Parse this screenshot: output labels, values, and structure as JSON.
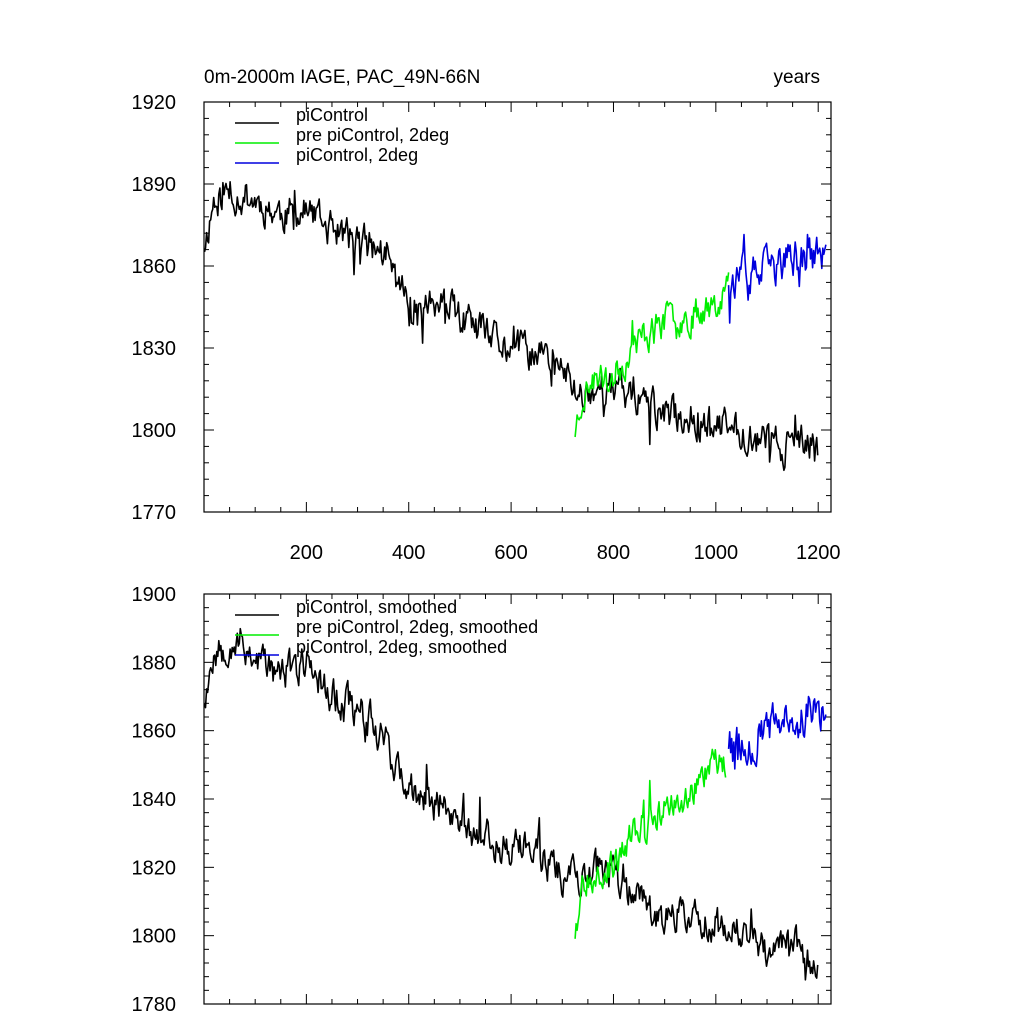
{
  "colors": {
    "piControl": "#000000",
    "pre_piControl_2deg": "#00ee00",
    "piControl_2deg": "#0000dd"
  },
  "chart_data": [
    {
      "type": "line",
      "title": "0m-2000m IAGE, PAC_49N-66N",
      "units": "years",
      "xlim": [
        0,
        1225
      ],
      "ylim": [
        1770,
        1920
      ],
      "xticks": [
        200,
        400,
        600,
        800,
        1000,
        1200
      ],
      "xtick_labels": [
        "200",
        "400",
        "600",
        "800",
        "1000",
        "1200"
      ],
      "yticks": [
        1770,
        1800,
        1830,
        1860,
        1890,
        1920
      ],
      "ytick_labels": [
        "1770",
        "1800",
        "1830",
        "1860",
        "1890",
        "1920"
      ],
      "legend_position": "top-left",
      "series": [
        {
          "name": "piControl",
          "color": "#000000",
          "x_start": 1,
          "x_end": 1200,
          "noise": 5.5,
          "seed": 11,
          "trend_x": [
            1,
            20,
            60,
            100,
            150,
            200,
            250,
            300,
            350,
            400,
            450,
            500,
            550,
            600,
            650,
            700,
            730,
            760,
            800,
            850,
            900,
            950,
            1000,
            1050,
            1100,
            1150,
            1200
          ],
          "trend_y": [
            1868,
            1885,
            1887,
            1884,
            1879,
            1880,
            1873,
            1869,
            1865,
            1846,
            1846,
            1841,
            1833,
            1830,
            1828,
            1822,
            1813,
            1815,
            1815,
            1812,
            1805,
            1805,
            1801,
            1800,
            1796,
            1794,
            1794
          ]
        },
        {
          "name": "pre piControl, 2deg",
          "color": "#00ee00",
          "x_start": 725,
          "x_end": 1025,
          "noise": 5,
          "seed": 23,
          "trend_x": [
            725,
            740,
            760,
            800,
            850,
            900,
            950,
            1000,
            1025
          ],
          "trend_y": [
            1800,
            1814,
            1818,
            1820,
            1833,
            1840,
            1842,
            1848,
            1853
          ]
        },
        {
          "name": "piControl, 2deg",
          "color": "#0000dd",
          "x_start": 1025,
          "x_end": 1215,
          "noise": 6,
          "seed": 37,
          "trend_x": [
            1025,
            1050,
            1100,
            1150,
            1200,
            1215
          ],
          "trend_y": [
            1856,
            1855,
            1858,
            1863,
            1864,
            1864
          ]
        }
      ]
    },
    {
      "type": "line",
      "xlim": [
        0,
        1225
      ],
      "ylim": [
        1780,
        1900
      ],
      "yticks": [
        1780,
        1800,
        1820,
        1840,
        1860,
        1880,
        1900
      ],
      "ytick_labels": [
        "1780",
        "1800",
        "1820",
        "1840",
        "1860",
        "1880",
        "1900"
      ],
      "legend_position": "top-left",
      "series": [
        {
          "name": "piControl, smoothed",
          "color": "#000000",
          "x_start": 1,
          "x_end": 1200,
          "noise": 4.5,
          "seed": 53,
          "trend_x": [
            1,
            20,
            60,
            100,
            150,
            200,
            250,
            300,
            350,
            400,
            450,
            500,
            550,
            600,
            650,
            700,
            730,
            760,
            800,
            850,
            900,
            950,
            1000,
            1050,
            1100,
            1150,
            1200
          ],
          "trend_y": [
            1870,
            1884,
            1887,
            1882,
            1876,
            1880,
            1871,
            1866,
            1860,
            1840,
            1839,
            1834,
            1828,
            1826,
            1825,
            1818,
            1818,
            1818,
            1818,
            1810,
            1806,
            1806,
            1803,
            1800,
            1797,
            1797,
            1793
          ]
        },
        {
          "name": "pre piControl, 2deg, smoothed",
          "color": "#00ee00",
          "x_start": 725,
          "x_end": 1020,
          "noise": 4,
          "seed": 67,
          "trend_x": [
            725,
            740,
            760,
            800,
            850,
            900,
            950,
            1000,
            1020
          ],
          "trend_y": [
            1801,
            1816,
            1820,
            1820,
            1832,
            1837,
            1841,
            1850,
            1852
          ]
        },
        {
          "name": "piControl, 2deg, smoothed",
          "color": "#0000dd",
          "x_start": 1025,
          "x_end": 1215,
          "noise": 5,
          "seed": 79,
          "trend_x": [
            1025,
            1050,
            1100,
            1150,
            1200,
            1215
          ],
          "trend_y": [
            1857,
            1855,
            1860,
            1862,
            1866,
            1865
          ]
        }
      ]
    }
  ]
}
